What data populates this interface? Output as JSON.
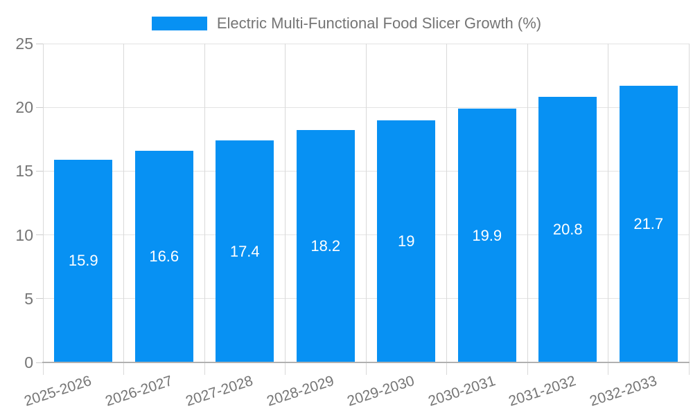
{
  "chart_data": {
    "type": "bar",
    "title": "Electric Multi-Functional Food Slicer Growth (%)",
    "categories": [
      "2025-2026",
      "2026-2027",
      "2027-2028",
      "2028-2029",
      "2029-2030",
      "2030-2031",
      "2031-2032",
      "2032-2033"
    ],
    "values": [
      15.9,
      16.6,
      17.4,
      18.2,
      19,
      19.9,
      20.8,
      21.7
    ],
    "bar_labels": [
      "15.9",
      "16.6",
      "17.4",
      "18.2",
      "19",
      "19.9",
      "20.8",
      "21.7"
    ],
    "xlabel": "",
    "ylabel": "",
    "ylim": [
      0,
      25
    ],
    "yticks": [
      0,
      5,
      10,
      15,
      20,
      25
    ],
    "grid": true,
    "legend_position": "top-center",
    "bar_color": "#0791f3",
    "bar_label_color": "#ffffff",
    "axis_text_color": "#757575",
    "gridline_color": "#e3e3e3",
    "axis_line_color": "#b0b0b0"
  }
}
